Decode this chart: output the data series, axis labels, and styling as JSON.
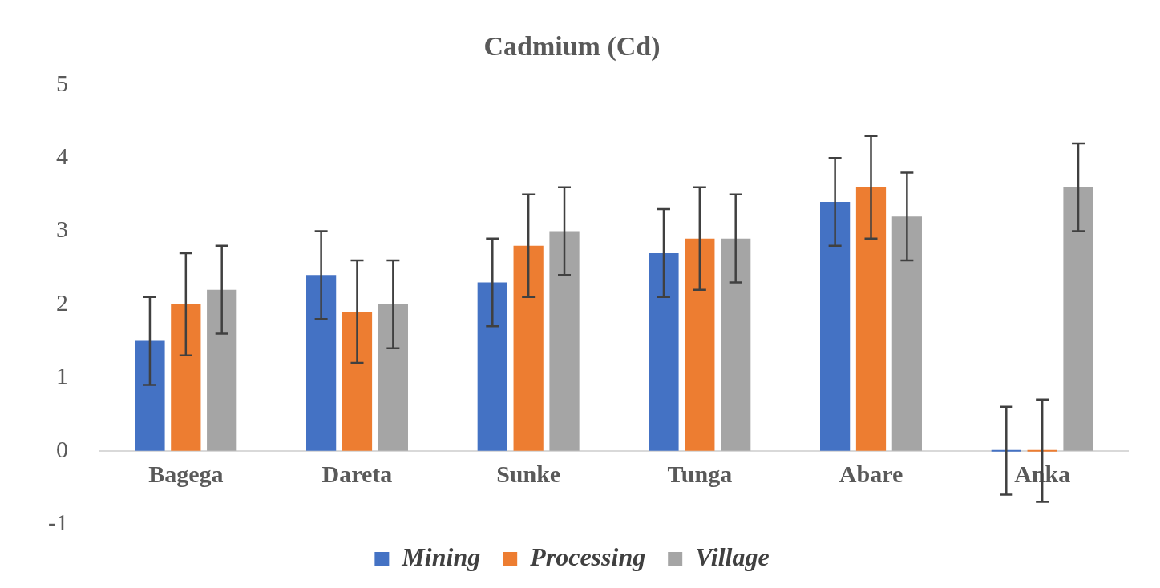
{
  "chart_data": {
    "type": "bar",
    "title": "Cadmium (Cd)",
    "categories": [
      "Bagega",
      "Dareta",
      "Sunke",
      "Tunga",
      "Abare",
      "Anka"
    ],
    "series": [
      {
        "name": "Mining",
        "color": "#4472c4",
        "values": [
          1.5,
          2.4,
          2.3,
          2.7,
          3.4,
          0
        ],
        "errors": [
          0.6,
          0.6,
          0.6,
          0.6,
          0.6,
          0.6
        ]
      },
      {
        "name": "Processing",
        "color": "#ed7d31",
        "values": [
          2.0,
          1.9,
          2.8,
          2.9,
          3.6,
          0
        ],
        "errors": [
          0.7,
          0.7,
          0.7,
          0.7,
          0.7,
          0.7
        ]
      },
      {
        "name": "Village",
        "color": "#a5a5a5",
        "values": [
          2.2,
          2.0,
          3.0,
          2.9,
          3.2,
          3.6
        ],
        "errors": [
          0.6,
          0.6,
          0.6,
          0.6,
          0.6,
          0.6
        ]
      }
    ],
    "ylim": [
      -1,
      5
    ],
    "yticks": [
      -1,
      0,
      1,
      2,
      3,
      4,
      5
    ],
    "grid": false,
    "legend": "bottom"
  }
}
